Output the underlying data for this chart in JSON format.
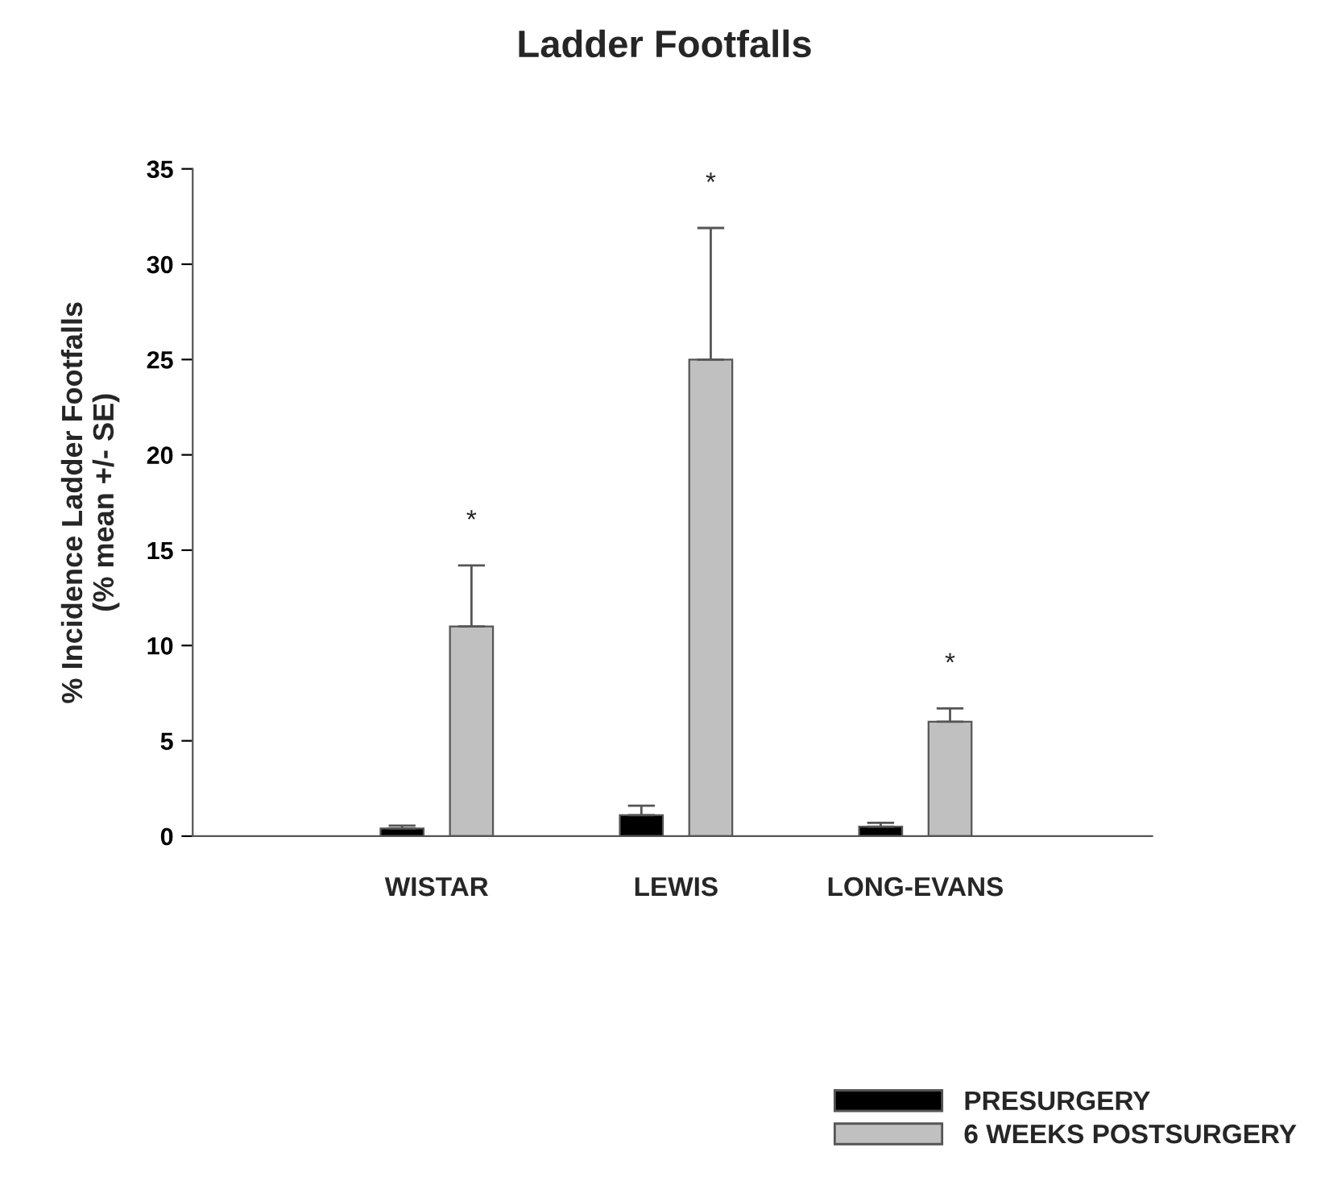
{
  "chart_data": {
    "type": "bar",
    "title": "Ladder Footfalls",
    "ylabel": "% Incidence Ladder Footfalls\n(% mean +/- SE)",
    "categories": [
      "WISTAR",
      "LEWIS",
      "LONG-EVANS"
    ],
    "series": [
      {
        "name": "PRESURGERY",
        "color": "#000000",
        "values": [
          0.4,
          1.1,
          0.5
        ],
        "errors": [
          [
            0.4,
            0.55
          ],
          [
            1.1,
            1.6
          ],
          [
            0.5,
            0.7
          ]
        ]
      },
      {
        "name": "6 WEEKS POSTSURGERY",
        "color": "#c0c0c0",
        "values": [
          11,
          25,
          6
        ],
        "errors": [
          [
            11,
            14.2
          ],
          [
            25,
            31.9
          ],
          [
            6,
            6.7
          ]
        ]
      }
    ],
    "ylim": [
      0,
      35
    ],
    "yticks": [
      0,
      5,
      10,
      15,
      20,
      25,
      30,
      35
    ],
    "annotations": [
      "*",
      "*",
      "*"
    ],
    "legend": "bottom right",
    "grid": false
  }
}
